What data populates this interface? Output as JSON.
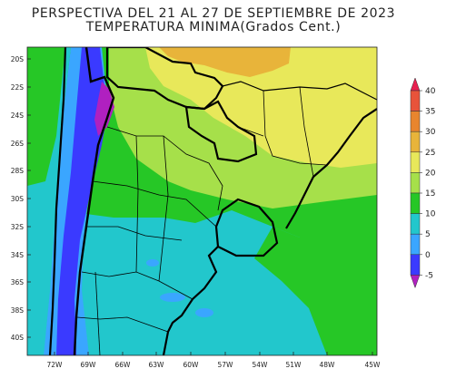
{
  "title_line1": "PERSPECTIVA DEL 21 AL 27 DE SEPTIEMBRE DE 2023",
  "title_line2": "TEMPERATURA MINIMA(Grados Cent.)",
  "map": {
    "lat_labels": [
      "20S",
      "22S",
      "24S",
      "26S",
      "28S",
      "30S",
      "32S",
      "34S",
      "36S",
      "38S",
      "40S"
    ],
    "lon_labels": [
      "72W",
      "69W",
      "66W",
      "63W",
      "60W",
      "57W",
      "54W",
      "51W",
      "48W",
      "45W"
    ]
  },
  "colorbar": {
    "ticks": [
      "40",
      "35",
      "30",
      "25",
      "20",
      "15",
      "10",
      "5",
      "0",
      "-5"
    ],
    "colors": [
      "#e8204f",
      "#e8533a",
      "#e8852e",
      "#e8b43a",
      "#e8e85a",
      "#a6e04a",
      "#26c726",
      "#22c7cc",
      "#3aa6ff",
      "#3a3aff",
      "#b020c0"
    ]
  }
}
